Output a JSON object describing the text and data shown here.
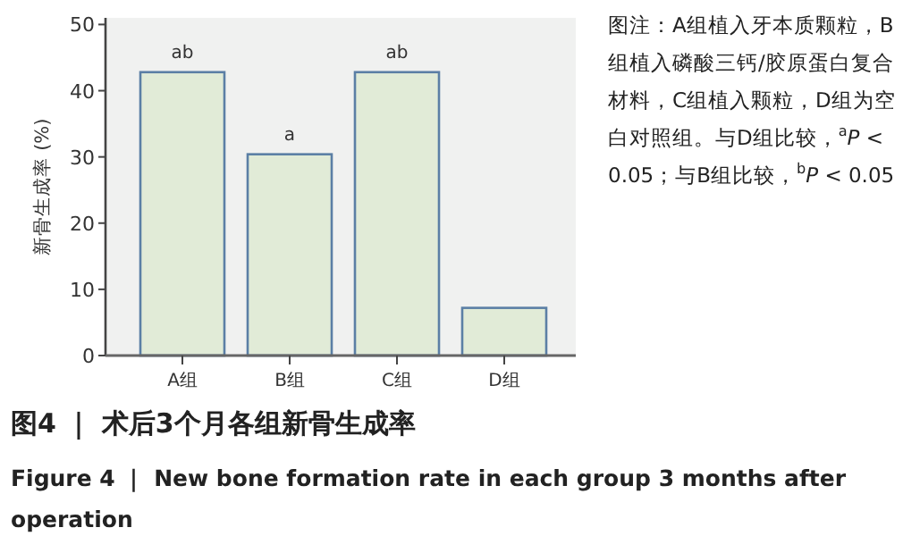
{
  "chart_data": {
    "type": "bar",
    "title": "图4 ｜ 术后3个月各组新骨生成率",
    "subtitle": "Figure 4 ｜ New bone formation rate in each group 3 months after operation",
    "ylabel": "新骨生成率 (%)",
    "categories": [
      "A组",
      "B组",
      "C组",
      "D组"
    ],
    "values": [
      42.8,
      30.4,
      42.8,
      7.2
    ],
    "value_labels": [
      "ab",
      "a",
      "ab",
      null
    ],
    "color": "#e1ebd7",
    "ylim": [
      0,
      51
    ],
    "yticks": [
      0,
      10,
      20,
      30,
      40,
      50
    ],
    "annotations": [
      "图注：A组植入牙本质颗粒，B组植入磷酸三钙/胶原蛋白复合材料，C组植入颗粒，D组为空白对照组。与D组比较，$^{a}$*P* < 0.05；与B组比较，$^{b}$*P* < 0.05"
    ]
  }
}
